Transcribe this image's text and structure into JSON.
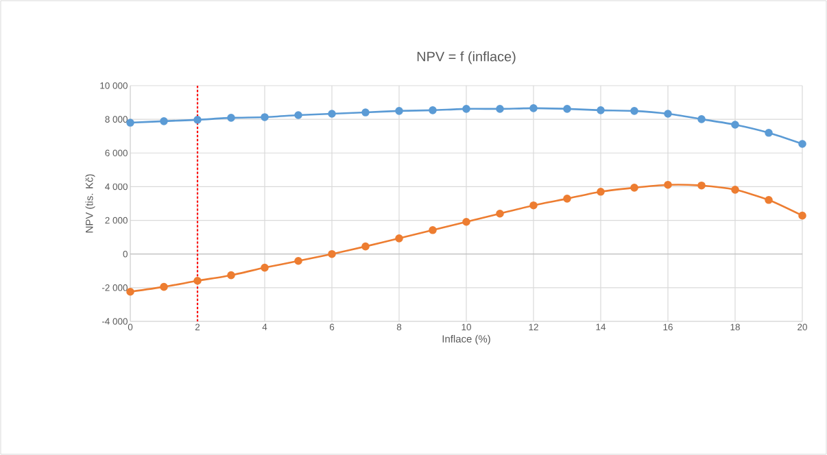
{
  "chart_data": {
    "type": "line",
    "title": "NPV = f (inflace)",
    "xlabel": "Inflace (%)",
    "ylabel": "NPV (tis. Kč)",
    "x": [
      0,
      1,
      2,
      3,
      4,
      5,
      6,
      7,
      8,
      9,
      10,
      11,
      12,
      13,
      14,
      15,
      16,
      17,
      18,
      19,
      20
    ],
    "series": [
      {
        "color": "#5b9bd5",
        "values": [
          7800,
          7890,
          7970,
          8090,
          8130,
          8250,
          8330,
          8410,
          8500,
          8540,
          8620,
          8620,
          8660,
          8620,
          8540,
          8500,
          8330,
          8010,
          7680,
          7200,
          6540
        ]
      },
      {
        "color": "#ed7d31",
        "values": [
          -2240,
          -1950,
          -1590,
          -1260,
          -810,
          -410,
          0,
          450,
          930,
          1420,
          1910,
          2400,
          2890,
          3290,
          3700,
          3940,
          4110,
          4070,
          3820,
          3210,
          2280
        ]
      }
    ],
    "xlim": [
      0,
      20
    ],
    "xticks": [
      0,
      2,
      4,
      6,
      8,
      10,
      12,
      14,
      16,
      18,
      20
    ],
    "ylim": [
      -4000,
      10000
    ],
    "yticks": [
      {
        "value": -4000,
        "label": "-4 000"
      },
      {
        "value": -2000,
        "label": "-2 000"
      },
      0,
      {
        "value": 2000,
        "label": "2 000"
      },
      {
        "value": 4000,
        "label": "4 000"
      },
      {
        "value": 6000,
        "label": "6 000"
      },
      {
        "value": 8000,
        "label": "8 000"
      },
      {
        "value": 10000,
        "label": "10 000"
      }
    ],
    "ref_lines": [
      {
        "axis": "x",
        "value": 2,
        "color": "#ff0000",
        "line_style": "dashed"
      }
    ],
    "grid": true,
    "marker": "circle",
    "line_style": "solid"
  }
}
